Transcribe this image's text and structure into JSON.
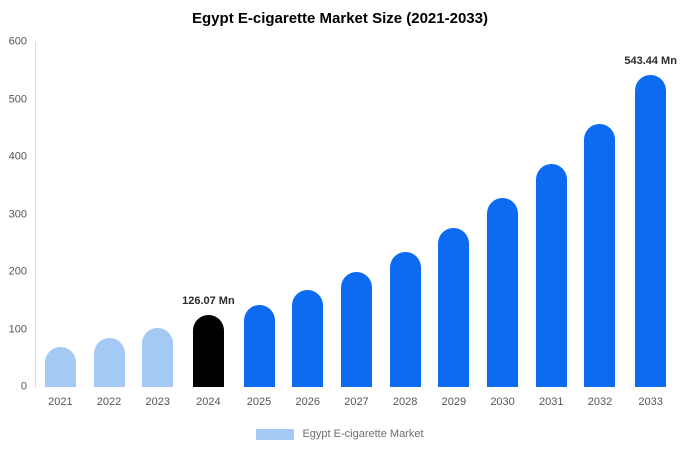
{
  "title": "Egypt E-cigarette Market Size (2021-2033)",
  "legend": {
    "label": "Egypt E-cigarette Market",
    "swatch_color": "#a4c9f4"
  },
  "colors": {
    "historical_bar": "#a4c9f4",
    "base_year_bar": "#000000",
    "forecast_bar": "#0d6bf2",
    "axis_line": "#d9d9d9",
    "tick_text": "#565656",
    "annotation_text": "#2b2b2b"
  },
  "chart_data": {
    "type": "bar",
    "title": "Egypt E-cigarette Market Size (2021-2033)",
    "unit": "Mn",
    "categories": [
      "2021",
      "2022",
      "2023",
      "2024",
      "2025",
      "2026",
      "2027",
      "2028",
      "2029",
      "2030",
      "2031",
      "2032",
      "2033"
    ],
    "values": [
      70,
      86,
      103,
      126.07,
      143,
      168,
      200,
      235,
      277,
      328,
      388,
      457,
      543.44
    ],
    "bar_colors": [
      "#a4c9f4",
      "#a4c9f4",
      "#a4c9f4",
      "#000000",
      "#0d6bf2",
      "#0d6bf2",
      "#0d6bf2",
      "#0d6bf2",
      "#0d6bf2",
      "#0d6bf2",
      "#0d6bf2",
      "#0d6bf2",
      "#0d6bf2"
    ],
    "ylim": [
      0,
      600
    ],
    "yticks": [
      0,
      100,
      200,
      300,
      400,
      500,
      600
    ],
    "grid": false,
    "legend_position": "bottom",
    "annotations": [
      {
        "category": "2024",
        "text": "126.07 Mn"
      },
      {
        "category": "2033",
        "text": "543.44 Mn"
      }
    ]
  }
}
